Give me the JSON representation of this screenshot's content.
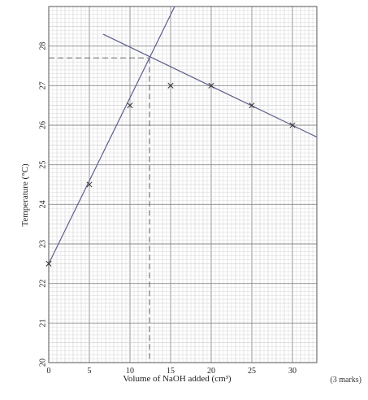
{
  "chart_data": {
    "type": "scatter",
    "xlabel": "Volume of NaOH added (cm³)",
    "ylabel": "Temperature (°C)",
    "xlim": [
      0,
      33
    ],
    "ylim": [
      20,
      29
    ],
    "x_ticks": [
      0,
      5,
      10,
      15,
      20,
      25,
      30
    ],
    "y_ticks": [
      20,
      21,
      22,
      23,
      24,
      25,
      26,
      27,
      28
    ],
    "points": [
      {
        "x": 0,
        "y": 22.5
      },
      {
        "x": 5,
        "y": 24.5
      },
      {
        "x": 10,
        "y": 26.5
      },
      {
        "x": 15,
        "y": 27.0
      },
      {
        "x": 20,
        "y": 27.0
      },
      {
        "x": 25,
        "y": 26.5
      },
      {
        "x": 30,
        "y": 26.0
      }
    ],
    "lines": [
      {
        "from": {
          "x": 0,
          "y": 22.5
        },
        "to": {
          "x": 15.5,
          "y": 29.0
        }
      },
      {
        "from": {
          "x": 6.7,
          "y": 28.3
        },
        "to": {
          "x": 33.0,
          "y": 25.7
        }
      }
    ],
    "intersection": {
      "x": 12.4,
      "y": 27.7
    },
    "grid": true,
    "colors": {
      "grid_minor": "#c9c9c9",
      "grid_major": "#8a8a8a",
      "line": "#5a5f8c",
      "marker": "#333333",
      "guide": "#666666"
    }
  },
  "footer": {
    "marks": "(3 marks)"
  }
}
